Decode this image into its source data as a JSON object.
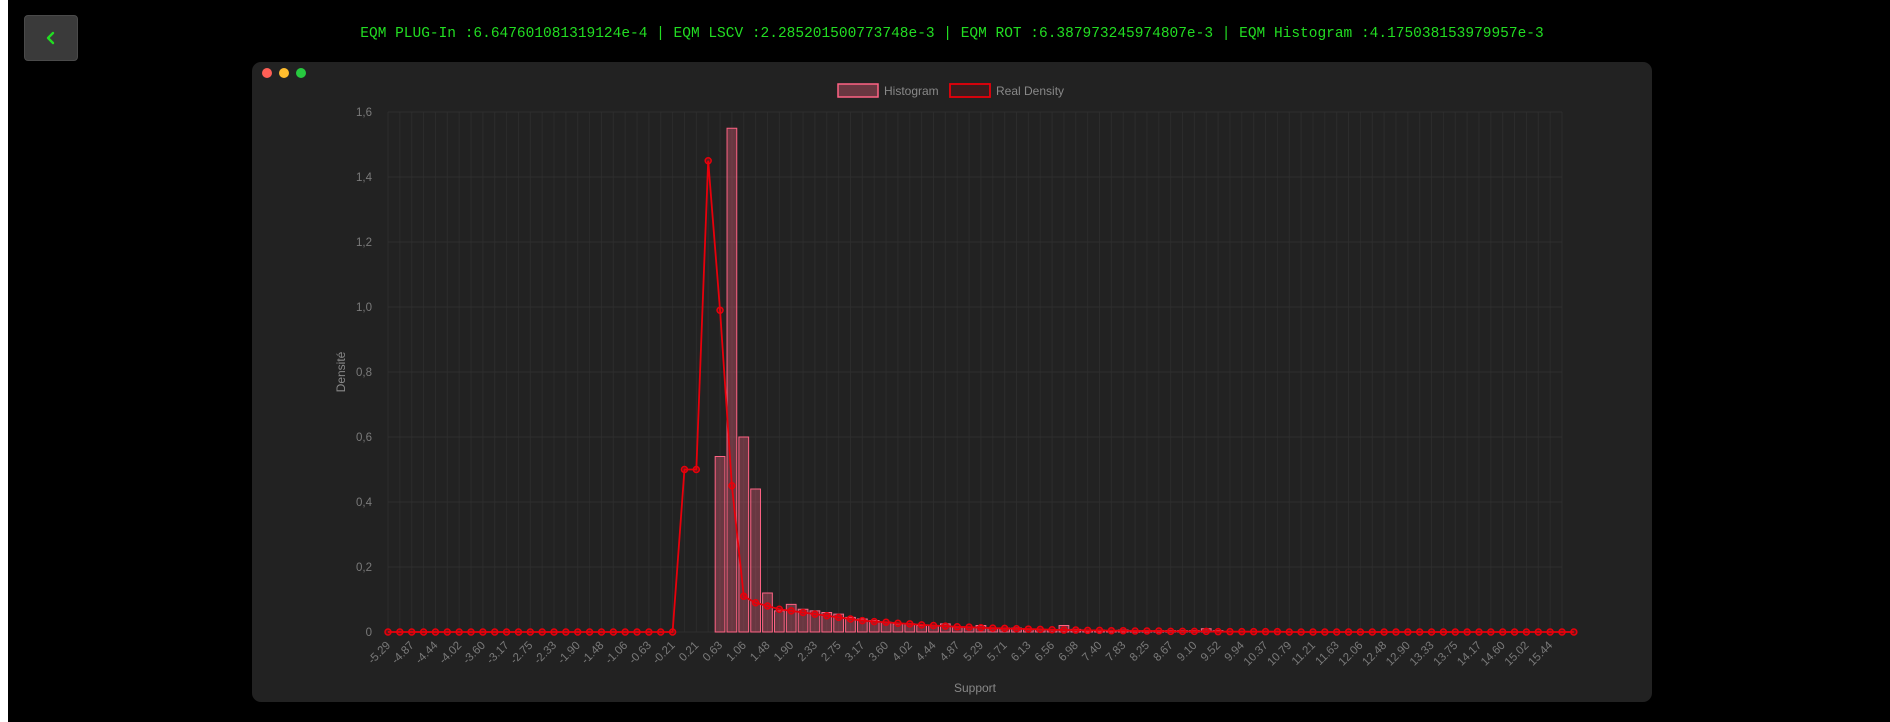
{
  "back_button": {
    "icon": "chevron-left-icon",
    "color": "#22dd22"
  },
  "metrics": {
    "text": "EQM PLUG-In :6.647601081319124e-4 | EQM LSCV :2.285201500773748e-3 | EQM ROT :6.387973245974807e-3 | EQM Histogram :4.175038153979957e-3",
    "color": "#22dd22"
  },
  "window_controls": [
    "close",
    "minimize",
    "maximize"
  ],
  "chart_data": {
    "type": "bar",
    "xlabel": "Support",
    "ylabel": "Densité",
    "ylim": [
      0,
      1.6
    ],
    "y_ticks": [
      "0",
      "0,2",
      "0,4",
      "0,6",
      "0,8",
      "1,0",
      "1,2",
      "1,4",
      "1,6"
    ],
    "grid": true,
    "legend_position": "top",
    "x_tick_labels": [
      "-5.29",
      "-4.87",
      "-4.44",
      "-4.02",
      "-3.60",
      "-3.17",
      "-2.75",
      "-2.33",
      "-1.90",
      "-1.48",
      "-1.06",
      "-0.63",
      "-0.21",
      "0.21",
      "0.63",
      "1.06",
      "1.48",
      "1.90",
      "2.33",
      "2.75",
      "3.17",
      "3.60",
      "4.02",
      "4.44",
      "4.87",
      "5.29",
      "5.71",
      "6.13",
      "6.56",
      "6.98",
      "7.40",
      "7.83",
      "8.25",
      "8.67",
      "9.10",
      "9.52",
      "9.94",
      "10.37",
      "10.79",
      "11.21",
      "11.63",
      "12.06",
      "12.48",
      "12.90",
      "13.33",
      "13.75",
      "14.17",
      "14.60",
      "15.02",
      "15.44"
    ],
    "x_start": -5.29,
    "x_step": 0.2115,
    "series": [
      {
        "name": "Histogram",
        "type": "bar",
        "color": "#ff6384",
        "values": [
          0,
          0,
          0,
          0,
          0,
          0,
          0,
          0,
          0,
          0,
          0,
          0,
          0,
          0,
          0,
          0,
          0,
          0,
          0,
          0,
          0,
          0,
          0,
          0,
          0,
          0,
          0,
          0,
          0.54,
          1.55,
          0.6,
          0.44,
          0.12,
          0.065,
          0.085,
          0.07,
          0.065,
          0.06,
          0.055,
          0.045,
          0.04,
          0.035,
          0.03,
          0.025,
          0.025,
          0.02,
          0.02,
          0.025,
          0.015,
          0.015,
          0.02,
          0.012,
          0.012,
          0.012,
          0.008,
          0.008,
          0.006,
          0.02,
          0.008,
          0.006,
          0.006,
          0.004,
          0.006,
          0.004,
          0.004,
          0.004,
          0.004,
          0.004,
          0.004,
          0.01,
          0.004,
          0,
          0,
          0,
          0,
          0,
          0,
          0,
          0,
          0,
          0,
          0,
          0,
          0,
          0,
          0,
          0,
          0,
          0,
          0,
          0,
          0,
          0,
          0,
          0,
          0,
          0,
          0,
          0,
          0
        ]
      },
      {
        "name": "Real Density",
        "type": "line",
        "color": "#e8000b",
        "values": [
          0,
          0,
          0,
          0,
          0,
          0,
          0,
          0,
          0,
          0,
          0,
          0,
          0,
          0,
          0,
          0,
          0,
          0,
          0,
          0,
          0,
          0,
          0,
          0,
          0,
          0.5,
          0.5,
          1.45,
          0.99,
          0.45,
          0.11,
          0.09,
          0.08,
          0.07,
          0.065,
          0.06,
          0.055,
          0.05,
          0.045,
          0.04,
          0.035,
          0.032,
          0.03,
          0.027,
          0.025,
          0.022,
          0.02,
          0.018,
          0.016,
          0.015,
          0.013,
          0.012,
          0.011,
          0.01,
          0.009,
          0.008,
          0.007,
          0.006,
          0.006,
          0.005,
          0.005,
          0.004,
          0.004,
          0.003,
          0.003,
          0.003,
          0.002,
          0.002,
          0.002,
          0.002,
          0.001,
          0.001,
          0.001,
          0.001,
          0.001,
          0.001,
          0,
          0,
          0,
          0,
          0,
          0,
          0,
          0,
          0,
          0,
          0,
          0,
          0,
          0,
          0,
          0,
          0,
          0,
          0,
          0,
          0,
          0,
          0,
          0,
          0
        ]
      }
    ]
  }
}
